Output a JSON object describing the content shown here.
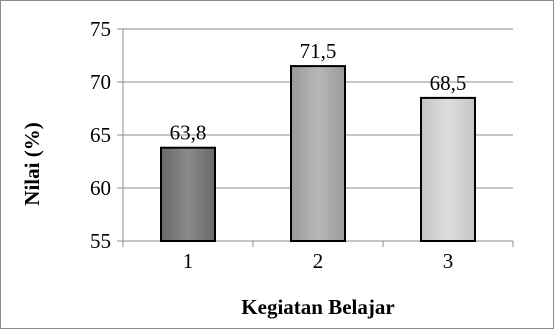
{
  "chart_data": {
    "type": "bar",
    "categories": [
      "1",
      "2",
      "3"
    ],
    "values": [
      63.8,
      71.5,
      68.5
    ],
    "data_labels": [
      "63,8",
      "71,5",
      "68,5"
    ],
    "xlabel": "Kegiatan Belajar",
    "ylabel": "Nilai (%)",
    "ylim": [
      55,
      75
    ],
    "yticks": [
      55,
      60,
      65,
      70,
      75
    ],
    "grid": true,
    "legend": "none",
    "bar_colors": [
      "#7a7a7a",
      "#a9a9a9",
      "#cfcfcf"
    ]
  }
}
